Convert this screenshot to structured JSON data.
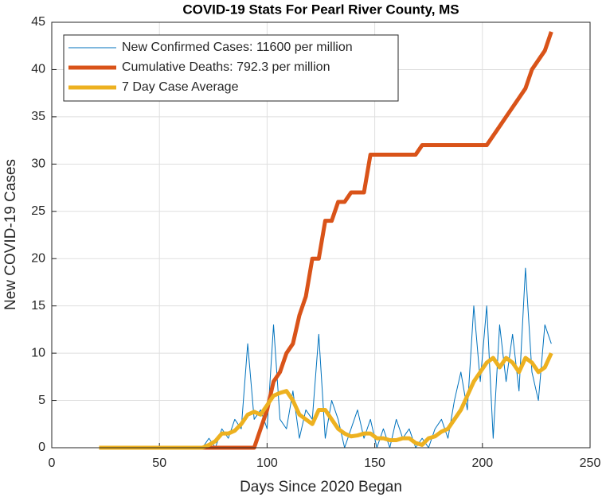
{
  "chart_data": {
    "type": "line",
    "title": "COVID-19 Stats For Pearl River County, MS",
    "x_label": "Days Since 2020 Began",
    "y_label": "New COVID-19 Cases",
    "x": [
      22,
      25,
      28,
      31,
      34,
      37,
      40,
      43,
      46,
      49,
      52,
      55,
      58,
      61,
      64,
      67,
      70,
      73,
      76,
      79,
      82,
      85,
      88,
      91,
      94,
      97,
      100,
      103,
      106,
      109,
      112,
      115,
      118,
      121,
      124,
      127,
      130,
      133,
      136,
      139,
      142,
      145,
      148,
      151,
      154,
      157,
      160,
      163,
      166,
      169,
      172,
      175,
      178,
      181,
      184,
      187,
      190,
      193,
      196,
      199,
      202,
      205,
      208,
      211,
      214,
      217,
      220,
      223,
      226,
      229,
      232
    ],
    "series": [
      {
        "name": "New Confirmed Cases: 11600 per million",
        "color": "#0072bd",
        "values": [
          0,
          0,
          0,
          0,
          0,
          0,
          0,
          0,
          0,
          0,
          0,
          0,
          0,
          0,
          0,
          0,
          0,
          1,
          0,
          2,
          1,
          3,
          2,
          11,
          3,
          4,
          2,
          13,
          3,
          2,
          6,
          1,
          4,
          3,
          12,
          1,
          5,
          3,
          0,
          2,
          4,
          1,
          3,
          0,
          2,
          0,
          3,
          1,
          2,
          0,
          1,
          0,
          2,
          3,
          1,
          5,
          8,
          4,
          15,
          7,
          15,
          1,
          13,
          7,
          12,
          6,
          19,
          8,
          5,
          13,
          11
        ]
      },
      {
        "name": "Cumulative Deaths: 792.3 per million",
        "color": "#d95319",
        "values": [
          0,
          0,
          0,
          0,
          0,
          0,
          0,
          0,
          0,
          0,
          0,
          0,
          0,
          0,
          0,
          0,
          0,
          0,
          0,
          0,
          0,
          0,
          0,
          0,
          0,
          2,
          4,
          7,
          8,
          10,
          11,
          14,
          16,
          20,
          20,
          24,
          24,
          26,
          26,
          27,
          27,
          27,
          31,
          31,
          31,
          31,
          31,
          31,
          31,
          31,
          32,
          32,
          32,
          32,
          32,
          32,
          32,
          32,
          32,
          32,
          32,
          33,
          34,
          35,
          36,
          37,
          38,
          40,
          41,
          42,
          44
        ]
      },
      {
        "name": "7 Day Case Average",
        "color": "#edb120",
        "values": [
          0,
          0,
          0,
          0,
          0,
          0,
          0,
          0,
          0,
          0,
          0,
          0,
          0,
          0,
          0,
          0,
          0,
          0.3,
          0.7,
          1.5,
          1.5,
          1.8,
          2.5,
          3.5,
          3.8,
          3.5,
          4.5,
          5.5,
          5.8,
          6,
          5,
          3.5,
          3,
          2.5,
          4,
          4,
          3,
          2,
          1.5,
          1.2,
          1.3,
          1.5,
          1.5,
          1,
          1,
          0.8,
          0.8,
          1,
          1,
          0.5,
          0.3,
          1,
          1.2,
          1.7,
          2,
          3,
          4,
          5.5,
          7,
          8,
          9,
          9.5,
          8.5,
          9.5,
          9,
          8,
          9.5,
          9,
          8,
          8.5,
          10
        ]
      }
    ],
    "xlim": [
      0,
      250
    ],
    "xticks": [
      0,
      50,
      100,
      150,
      200,
      250
    ],
    "ylim": [
      0,
      45
    ],
    "yticks": [
      0,
      5,
      10,
      15,
      20,
      25,
      30,
      35,
      40,
      45
    ],
    "grid": true,
    "legend": "upper-left"
  }
}
